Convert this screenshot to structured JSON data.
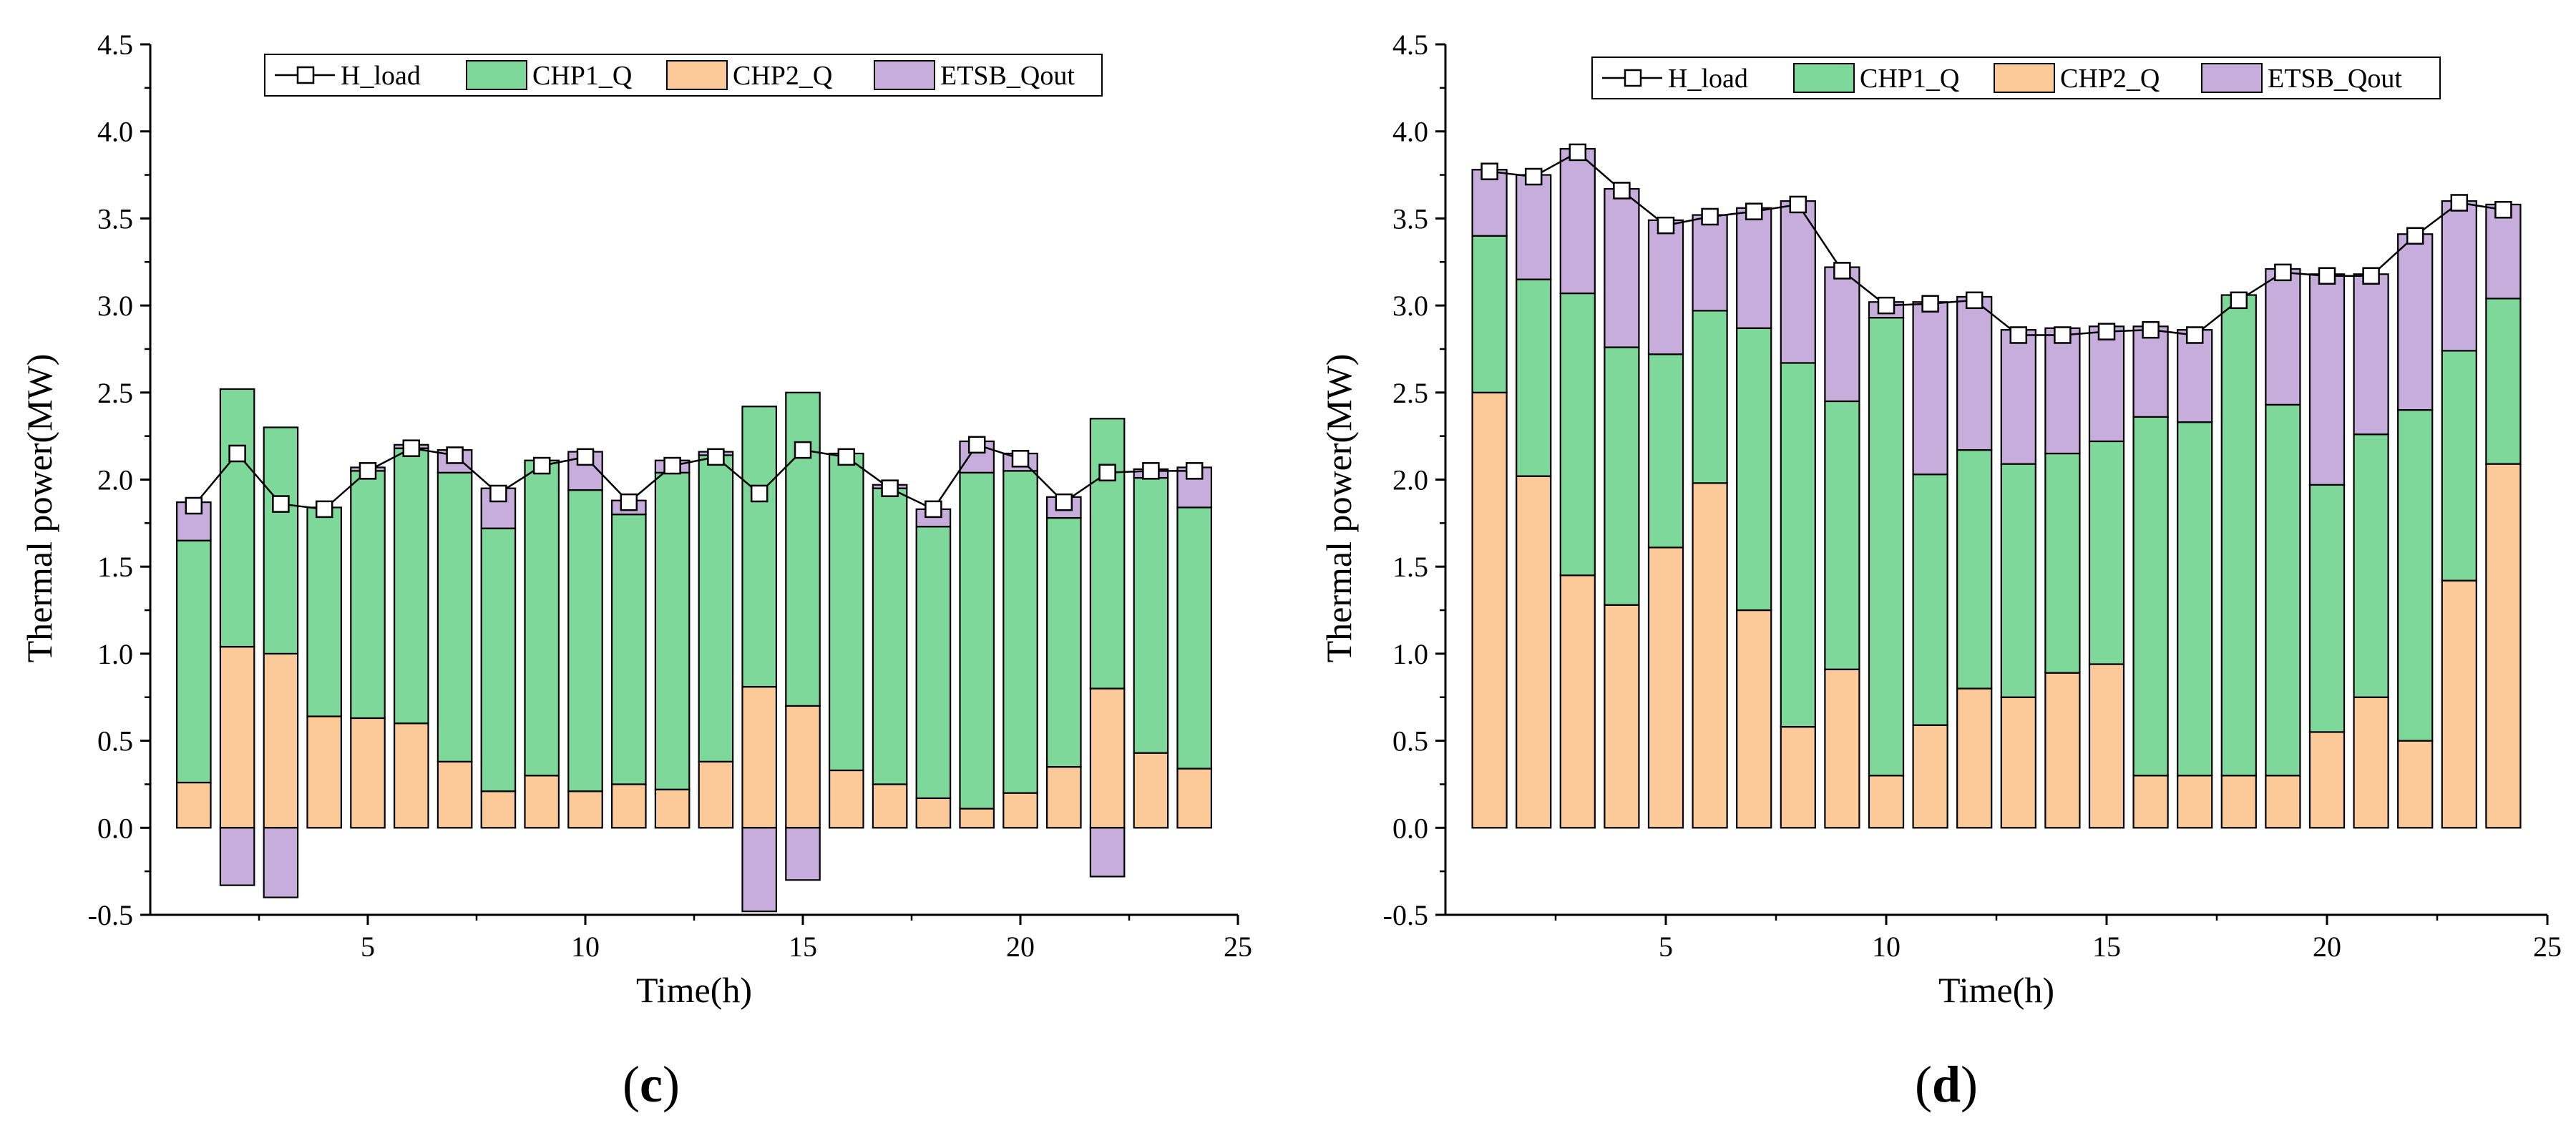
{
  "chart_data": [
    {
      "type": "bar",
      "panel_label": "c",
      "xlabel": "Time(h)",
      "ylabel": "Thermal power(MW)",
      "xlim": [
        0,
        25
      ],
      "ylim": [
        -0.5,
        4.5
      ],
      "xticks": [
        5,
        10,
        15,
        20,
        25
      ],
      "yticks": [
        "-0.5",
        "0.0",
        "0.5",
        "1.0",
        "1.5",
        "2.0",
        "2.5",
        "3.0",
        "3.5",
        "4.0",
        "4.5"
      ],
      "legend": [
        "H_load",
        "CHP1_Q",
        "CHP2_Q",
        "ETSB_Qout"
      ],
      "legend_position": "top",
      "x": [
        1,
        2,
        3,
        4,
        5,
        6,
        7,
        8,
        9,
        10,
        11,
        12,
        13,
        14,
        15,
        16,
        17,
        18,
        19,
        20,
        21,
        22,
        23,
        24
      ],
      "series": [
        {
          "name": "CHP2_Q",
          "kind": "bar",
          "values": [
            0.26,
            1.04,
            1.0,
            0.64,
            0.63,
            0.6,
            0.38,
            0.21,
            0.3,
            0.21,
            0.25,
            0.22,
            0.38,
            0.81,
            0.7,
            0.33,
            0.25,
            0.17,
            0.11,
            0.2,
            0.35,
            0.8,
            0.43,
            0.34
          ]
        },
        {
          "name": "CHP1_Q",
          "kind": "bar",
          "values": [
            1.39,
            1.48,
            1.3,
            1.2,
            1.42,
            1.58,
            1.66,
            1.51,
            1.81,
            1.73,
            1.55,
            1.82,
            1.76,
            1.61,
            1.8,
            1.82,
            1.7,
            1.56,
            1.93,
            1.85,
            1.43,
            1.55,
            1.58,
            1.5
          ]
        },
        {
          "name": "ETSB_Qout",
          "kind": "bar",
          "values": [
            0.22,
            -0.33,
            -0.4,
            0.0,
            0.02,
            0.02,
            0.13,
            0.23,
            0.0,
            0.22,
            0.08,
            0.07,
            0.02,
            -0.48,
            -0.3,
            0.0,
            0.02,
            0.1,
            0.18,
            0.1,
            0.12,
            -0.28,
            0.05,
            0.23
          ]
        },
        {
          "name": "H_load",
          "kind": "line",
          "values": [
            1.85,
            2.15,
            1.86,
            1.83,
            2.05,
            2.18,
            2.14,
            1.92,
            2.08,
            2.13,
            1.87,
            2.08,
            2.13,
            1.92,
            2.17,
            2.13,
            1.95,
            1.83,
            2.2,
            2.12,
            1.87,
            2.04,
            2.05,
            2.05
          ]
        }
      ]
    },
    {
      "type": "bar",
      "panel_label": "d",
      "xlabel": "Time(h)",
      "ylabel": "Thermal power(MW)",
      "xlim": [
        0,
        25
      ],
      "ylim": [
        -0.5,
        4.5
      ],
      "xticks": [
        5,
        10,
        15,
        20,
        25
      ],
      "yticks": [
        "-0.5",
        "0.0",
        "0.5",
        "1.0",
        "1.5",
        "2.0",
        "2.5",
        "3.0",
        "3.5",
        "4.0",
        "4.5"
      ],
      "legend": [
        "H_load",
        "CHP1_Q",
        "CHP2_Q",
        "ETSB_Qout"
      ],
      "legend_position": "top",
      "x": [
        1,
        2,
        3,
        4,
        5,
        6,
        7,
        8,
        9,
        10,
        11,
        12,
        13,
        14,
        15,
        16,
        17,
        18,
        19,
        20,
        21,
        22,
        23,
        24
      ],
      "series": [
        {
          "name": "CHP2_Q",
          "kind": "bar",
          "values": [
            2.5,
            2.02,
            1.45,
            1.28,
            1.61,
            1.98,
            1.25,
            0.58,
            0.91,
            0.3,
            0.59,
            0.8,
            0.75,
            0.89,
            0.94,
            0.3,
            0.3,
            0.3,
            0.3,
            0.55,
            0.75,
            0.5,
            1.42,
            2.09
          ]
        },
        {
          "name": "CHP1_Q",
          "kind": "bar",
          "values": [
            0.9,
            1.13,
            1.62,
            1.48,
            1.11,
            0.99,
            1.62,
            2.09,
            1.54,
            2.63,
            1.44,
            1.37,
            1.34,
            1.26,
            1.28,
            2.06,
            2.03,
            2.76,
            2.13,
            1.42,
            1.51,
            1.9,
            1.32,
            0.95
          ]
        },
        {
          "name": "ETSB_Qout",
          "kind": "bar",
          "values": [
            0.38,
            0.6,
            0.83,
            0.91,
            0.77,
            0.55,
            0.69,
            0.93,
            0.77,
            0.09,
            0.99,
            0.88,
            0.77,
            0.72,
            0.66,
            0.52,
            0.53,
            0.0,
            0.78,
            1.21,
            0.92,
            1.01,
            0.86,
            0.54
          ]
        },
        {
          "name": "H_load",
          "kind": "line",
          "values": [
            3.77,
            3.74,
            3.88,
            3.66,
            3.46,
            3.51,
            3.54,
            3.58,
            3.2,
            3.0,
            3.01,
            3.03,
            2.83,
            2.83,
            2.85,
            2.86,
            2.83,
            3.03,
            3.19,
            3.17,
            3.17,
            3.4,
            3.59,
            3.55
          ]
        }
      ]
    }
  ],
  "colors": {
    "CHP1_Q": "#7dd89a",
    "CHP2_Q": "#fcc998",
    "ETSB_Qout": "#c7addb",
    "H_load": "#000000"
  }
}
